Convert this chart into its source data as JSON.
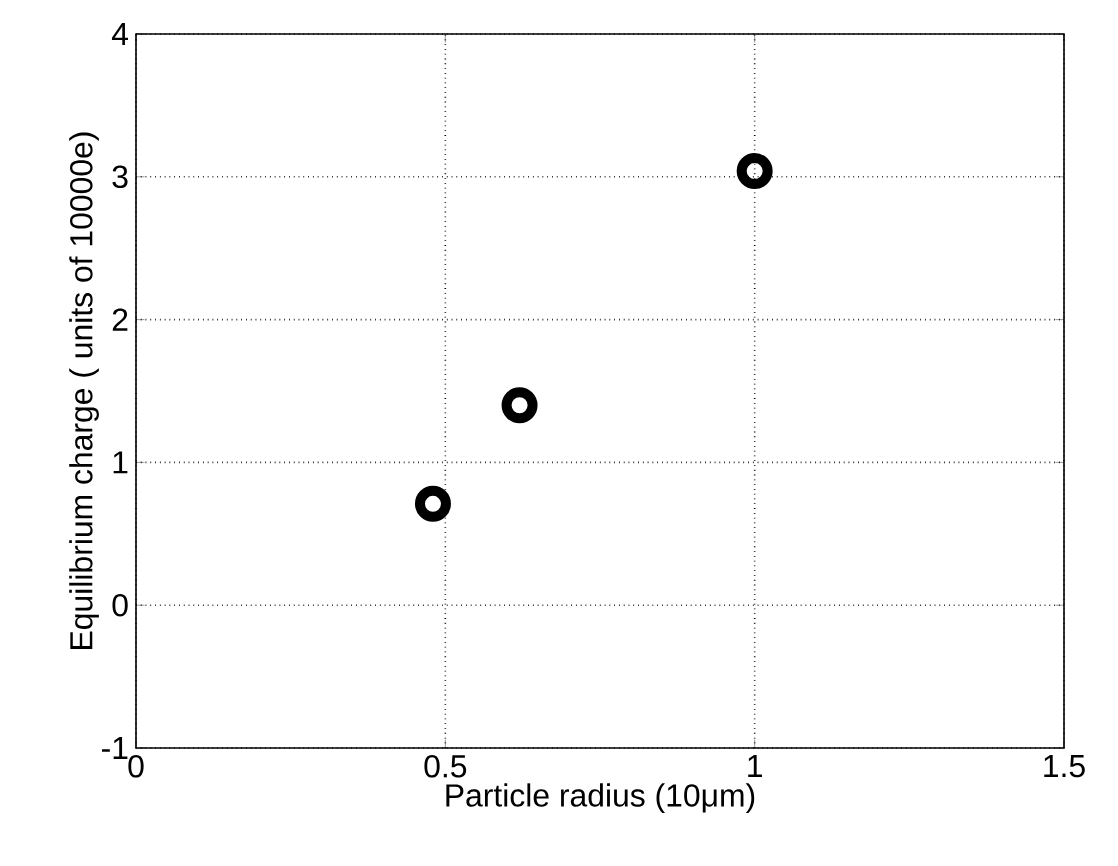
{
  "chart_data": {
    "type": "scatter",
    "xlabel": "Particle radius (10μm)",
    "ylabel": "Equilibrium charge ( units of 10000e)",
    "x": [
      0.48,
      0.62,
      1.0
    ],
    "values": [
      0.71,
      1.4,
      3.04
    ],
    "color": "#000000",
    "marker": "circle",
    "grid": true,
    "xlim": [
      0,
      1.5
    ],
    "ylim": [
      -1,
      4
    ],
    "xticks": [
      0,
      0.5,
      1,
      1.5
    ],
    "yticks": [
      -1,
      0,
      1,
      2,
      3,
      4
    ]
  }
}
